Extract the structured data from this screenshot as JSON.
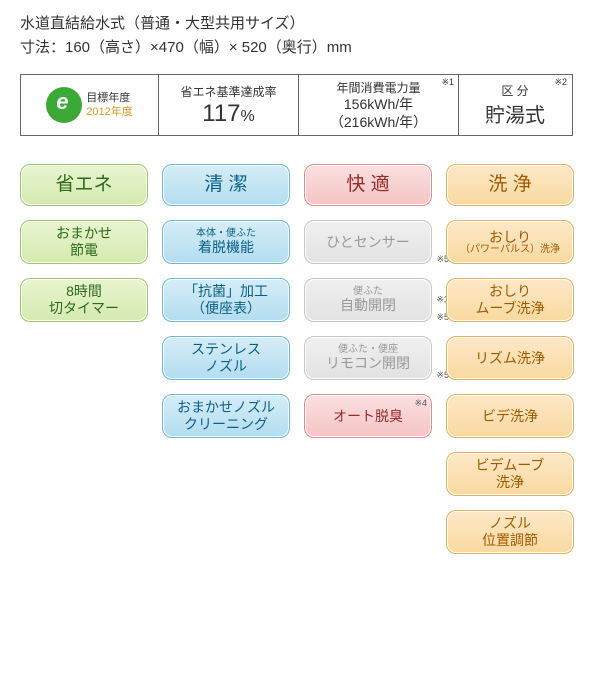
{
  "header": {
    "line1": "水道直結給水式（普通・大型共用サイズ）",
    "line2": "寸法：160（高さ）×470（幅）× 520（奥行）mm"
  },
  "spec": {
    "eco_label1": "目標年度",
    "eco_label2": "2012年度",
    "rate_label": "省エネ基準達成率",
    "rate_value": "117",
    "rate_unit": "%",
    "power_label": "年間消費電力量",
    "power_sup": "※1",
    "power_line1": "156kWh/年",
    "power_line2": "（216kWh/年）",
    "type_label": "区 分",
    "type_sup": "※2",
    "type_value": "貯湯式"
  },
  "columns": {
    "headers": [
      "省エネ",
      "清 潔",
      "快 適",
      "洗 浄"
    ],
    "header_colors": [
      "green",
      "blue",
      "red",
      "orange"
    ]
  },
  "cells": [
    [
      {
        "variant": "green",
        "line1": "おまかせ",
        "line2": "節電"
      },
      {
        "variant": "blue",
        "sub": "本体・便ふた",
        "line1": "着脱機能"
      },
      {
        "variant": "gray",
        "line1": "ひとセンサー",
        "note": "※5",
        "note_pos": "br"
      },
      {
        "variant": "orange",
        "line1": "おしり",
        "sub2": "（パワーパルス）洗浄"
      }
    ],
    [
      {
        "variant": "green",
        "line1": "8時間",
        "line2": "切タイマー"
      },
      {
        "variant": "blue",
        "line1": "「抗菌」加工",
        "line2": "（便座表）"
      },
      {
        "variant": "gray",
        "sub": "便ふた",
        "line1": "自動開閉",
        "note": "※3",
        "note_pos": "r",
        "note2": "※5",
        "note2_pos": "br"
      },
      {
        "variant": "orange",
        "line1": "おしり",
        "line2": "ムーブ洗浄"
      }
    ],
    [
      null,
      {
        "variant": "blue",
        "line1": "ステンレス",
        "line2": "ノズル"
      },
      {
        "variant": "gray",
        "sub": "便ふた・便座",
        "line1": "リモコン開閉",
        "note": "※5",
        "note_pos": "br"
      },
      {
        "variant": "orange",
        "line1": "リズム洗浄"
      }
    ],
    [
      null,
      {
        "variant": "blue",
        "line1": "おまかせノズル",
        "line2": "クリーニング"
      },
      {
        "variant": "red",
        "line1": "オート脱臭",
        "note": "※4",
        "note_pos": "tr"
      },
      {
        "variant": "orange",
        "line1": "ビデ洗浄"
      }
    ],
    [
      null,
      null,
      null,
      {
        "variant": "orange",
        "line1": "ビデムーブ",
        "line2": "洗浄"
      }
    ],
    [
      null,
      null,
      null,
      {
        "variant": "orange",
        "line1": "ノズル",
        "line2": "位置調節"
      }
    ]
  ]
}
